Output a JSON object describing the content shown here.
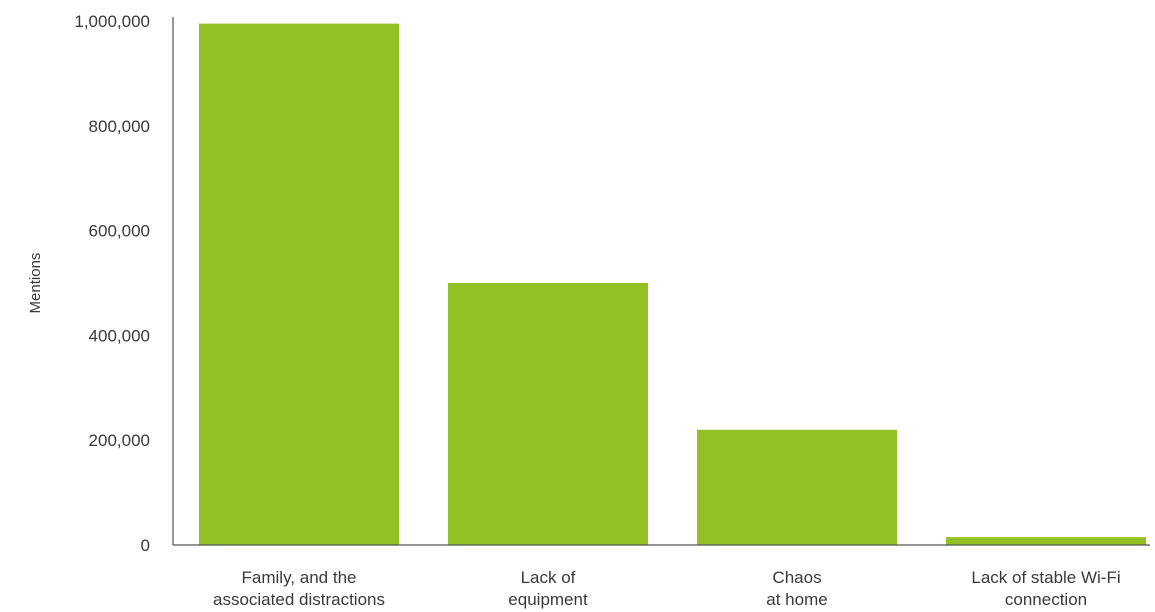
{
  "chart_data": {
    "type": "bar",
    "title": "",
    "xlabel": "",
    "ylabel": "Mentions",
    "ylim": [
      0,
      1000000
    ],
    "yticks": [
      0,
      200000,
      400000,
      600000,
      800000,
      1000000
    ],
    "ytick_labels": [
      "0",
      "200,000",
      "400,000",
      "600,000",
      "800,000",
      "1,000,000"
    ],
    "categories": [
      [
        "Family, and the",
        "associated distractions"
      ],
      [
        "Lack of",
        "equipment"
      ],
      [
        "Chaos",
        "at home"
      ],
      [
        "Lack of stable Wi-Fi",
        "connection"
      ]
    ],
    "values": [
      995000,
      500000,
      220000,
      15000
    ],
    "grid": false,
    "legend": "none",
    "colors": {
      "bar": "#93c022",
      "axis": "#555555",
      "text": "#3a3a3a"
    }
  }
}
